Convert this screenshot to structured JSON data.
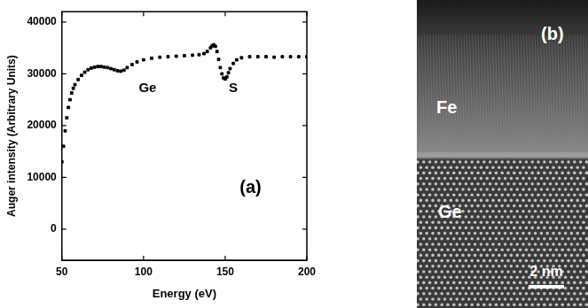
{
  "chart_data": {
    "type": "scatter",
    "x_label": "Energy (eV)",
    "y_label": "Auger intensity (Arbitrary Units)",
    "annotations": [
      "Ge",
      "S",
      "(a)"
    ],
    "x": [
      50,
      51,
      52,
      53,
      54,
      55,
      56,
      57,
      58,
      60,
      62,
      64,
      66,
      68,
      70,
      72,
      74,
      76,
      78,
      80,
      82,
      84,
      86,
      88,
      90,
      93,
      96,
      100,
      105,
      110,
      115,
      120,
      125,
      130,
      134,
      137,
      139,
      141,
      142,
      143,
      144,
      145,
      146,
      147,
      148,
      149,
      150,
      151,
      152,
      153,
      155,
      157,
      160,
      165,
      170,
      175,
      180,
      185,
      190,
      195,
      200
    ],
    "values": [
      13000,
      16000,
      19000,
      21500,
      23500,
      25000,
      26300,
      27200,
      27900,
      28900,
      29700,
      30300,
      30800,
      31100,
      31300,
      31400,
      31400,
      31300,
      31200,
      31000,
      30800,
      30600,
      30500,
      30700,
      31200,
      31800,
      32300,
      32700,
      33000,
      33200,
      33300,
      33400,
      33500,
      33600,
      33700,
      33900,
      34300,
      35000,
      35400,
      35600,
      35300,
      34300,
      32800,
      31200,
      30000,
      29200,
      29000,
      29400,
      30200,
      31000,
      32000,
      32700,
      33100,
      33300,
      33300,
      33300,
      33200,
      33300,
      33300,
      33300,
      33300
    ],
    "color": "#000000",
    "marker": "square",
    "xlim": [
      50,
      200
    ],
    "xticks": [
      50,
      100,
      150,
      200
    ],
    "ylim": [
      -6000,
      42000
    ],
    "yticks": [
      0,
      10000,
      20000,
      30000,
      40000
    ],
    "grid": false
  },
  "image_panel": {
    "labels": [
      "(b)",
      "Fe",
      "Ge"
    ],
    "scale_bar": "2 nm"
  }
}
